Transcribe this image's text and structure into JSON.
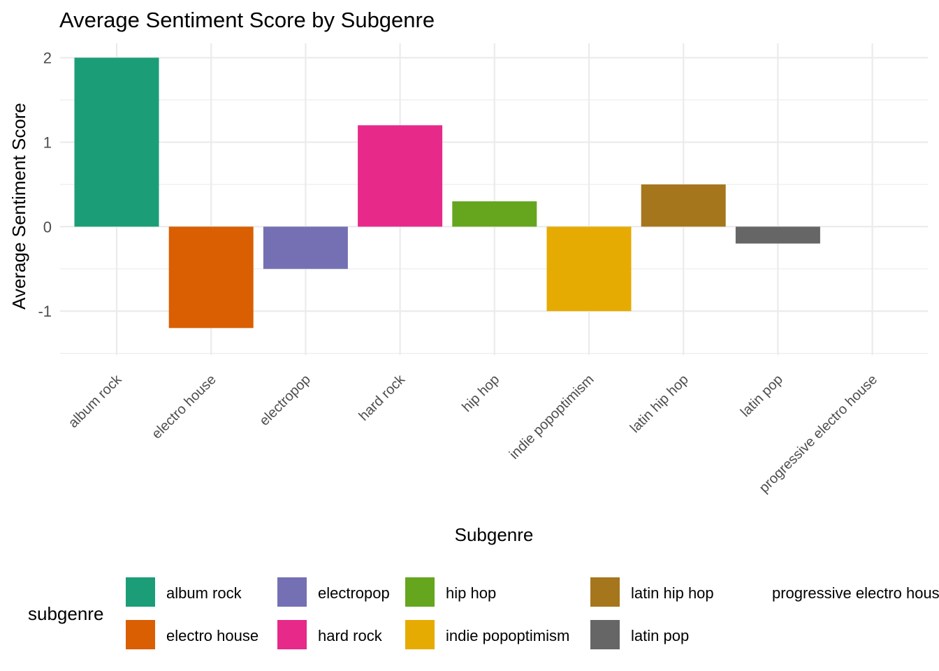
{
  "chart_data": {
    "type": "bar",
    "title": "Average Sentiment Score by Subgenre",
    "xlabel": "Subgenre",
    "ylabel": "Average Sentiment Score",
    "categories": [
      "album rock",
      "electro house",
      "electropop",
      "hard rock",
      "hip hop",
      "indie popoptimism",
      "latin hip hop",
      "latin pop",
      "progressive electro house"
    ],
    "values": [
      2.0,
      -1.2,
      -0.5,
      1.2,
      0.3,
      -1.0,
      0.5,
      -0.2,
      0.0
    ],
    "colors": [
      "#1b9e77",
      "#d95f02",
      "#7570b3",
      "#e7298a",
      "#66a61e",
      "#e6ab02",
      "#a6761d",
      "#666666",
      "#ffffff"
    ],
    "ylim": [
      -1.5,
      2.0
    ],
    "yticks": [
      -1,
      0,
      1,
      2
    ],
    "ytick_labels": [
      "-1",
      "0",
      "1",
      "2"
    ],
    "grid": true,
    "legend": {
      "title": "subgenre",
      "position": "bottom"
    }
  }
}
